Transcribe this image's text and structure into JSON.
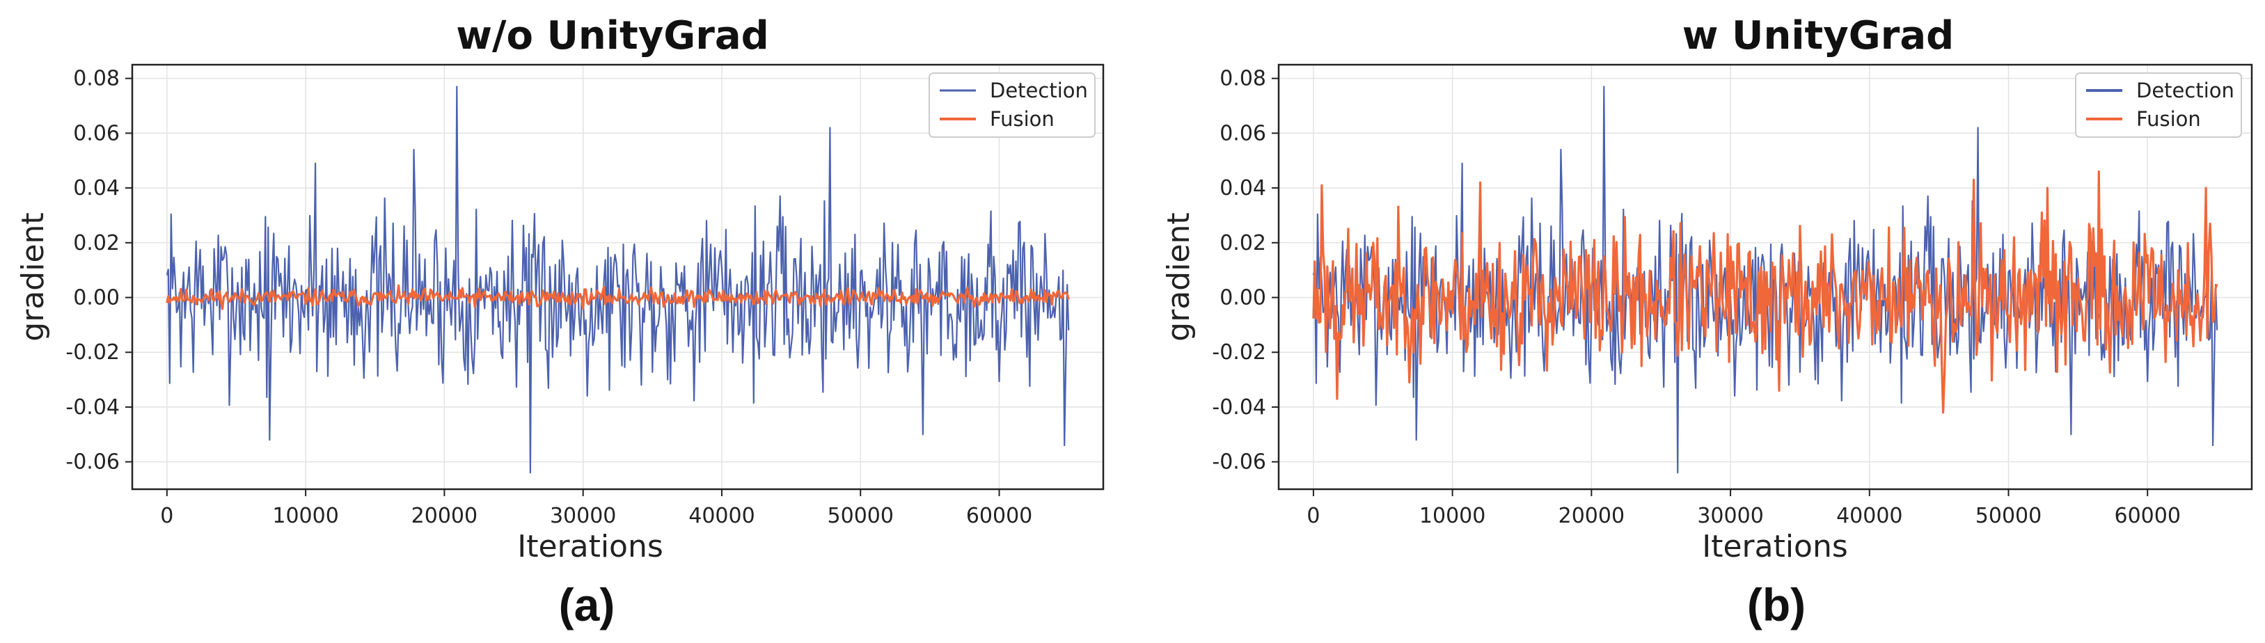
{
  "chart_data": [
    {
      "type": "line",
      "title": "w/o UnityGrad",
      "xlabel": "Iterations",
      "ylabel": "gradient",
      "panel_label": "(a)",
      "xlim": [
        -2500,
        67500
      ],
      "ylim": [
        -0.07,
        0.085
      ],
      "xticks": [
        0,
        10000,
        20000,
        30000,
        40000,
        50000,
        60000
      ],
      "xtick_labels": [
        "0",
        "10000",
        "20000",
        "30000",
        "40000",
        "50000",
        "60000"
      ],
      "yticks": [
        -0.06,
        -0.04,
        -0.02,
        0.0,
        0.02,
        0.04,
        0.06,
        0.08
      ],
      "ytick_labels": [
        "-0.06",
        "-0.04",
        "-0.02",
        "0.00",
        "0.02",
        "0.04",
        "0.06",
        "0.08"
      ],
      "grid": true,
      "legend": "top-right",
      "x_start": 0,
      "x_end": 65000,
      "series": [
        {
          "name": "Detection",
          "color": "#4C62AE",
          "amplitude": 0.022,
          "seed": 7,
          "spikes": [
            [
              7400,
              -0.052
            ],
            [
              10700,
              0.049
            ],
            [
              17800,
              0.054
            ],
            [
              20900,
              0.077
            ],
            [
              26200,
              -0.064
            ],
            [
              47800,
              0.062
            ],
            [
              54500,
              -0.05
            ],
            [
              64700,
              -0.054
            ]
          ]
        },
        {
          "name": "Fusion",
          "color": "#F0673A",
          "amplitude": 0.0022,
          "seed": 11,
          "spikes": []
        }
      ]
    },
    {
      "type": "line",
      "title": "w UnityGrad",
      "xlabel": "Iterations",
      "ylabel": "gradient",
      "panel_label": "(b)",
      "xlim": [
        -2500,
        67500
      ],
      "ylim": [
        -0.07,
        0.085
      ],
      "xticks": [
        0,
        10000,
        20000,
        30000,
        40000,
        50000,
        60000
      ],
      "xtick_labels": [
        "0",
        "10000",
        "20000",
        "30000",
        "40000",
        "50000",
        "60000"
      ],
      "yticks": [
        -0.06,
        -0.04,
        -0.02,
        0.0,
        0.02,
        0.04,
        0.06,
        0.08
      ],
      "ytick_labels": [
        "-0.06",
        "-0.04",
        "-0.02",
        "0.00",
        "0.02",
        "0.04",
        "0.06",
        "0.08"
      ],
      "grid": true,
      "legend": "top-right",
      "x_start": 0,
      "x_end": 65000,
      "series": [
        {
          "name": "Detection",
          "color": "#4C62AE",
          "amplitude": 0.022,
          "seed": 7,
          "spikes": [
            [
              7400,
              -0.052
            ],
            [
              10700,
              0.049
            ],
            [
              17800,
              0.054
            ],
            [
              20900,
              0.077
            ],
            [
              26200,
              -0.064
            ],
            [
              47800,
              0.062
            ],
            [
              54500,
              -0.05
            ],
            [
              64700,
              -0.054
            ]
          ]
        },
        {
          "name": "Fusion",
          "color": "#F0673A",
          "amplitude": 0.017,
          "seed": 23,
          "spikes": [
            [
              600,
              0.041
            ],
            [
              1700,
              -0.037
            ],
            [
              12000,
              0.042
            ],
            [
              33500,
              -0.034
            ],
            [
              45300,
              -0.042
            ],
            [
              47500,
              0.043
            ],
            [
              52800,
              0.04
            ],
            [
              56500,
              0.046
            ],
            [
              64200,
              0.04
            ]
          ]
        }
      ]
    }
  ]
}
